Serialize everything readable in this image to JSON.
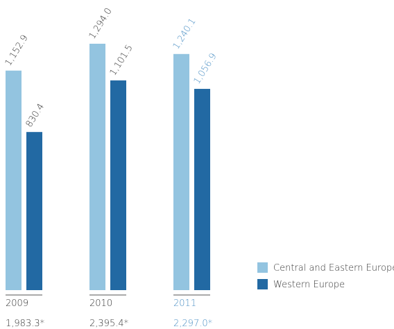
{
  "chart_data": {
    "type": "bar",
    "categories": [
      "2009",
      "2010",
      "2011"
    ],
    "category_colors": [
      "#333333",
      "#333333",
      "#4a8fc4"
    ],
    "series": [
      {
        "name": "Central and Eastern Europe",
        "color": "#93c4e0",
        "values": [
          1152.9,
          1294.0,
          1240.1
        ],
        "value_labels": [
          "1,152.9",
          "1,294.0",
          "1,240.1"
        ]
      },
      {
        "name": "Western Europe",
        "color": "#2269a3",
        "values": [
          830.4,
          1101.5,
          1056.9
        ],
        "value_labels": [
          "830.4",
          "1,101.5",
          "1,056.9"
        ]
      }
    ],
    "totals": [
      1983.3,
      2395.4,
      2297.0
    ],
    "total_labels": [
      "1,983.3*",
      "2,395.4*",
      "2,297.0*"
    ]
  }
}
